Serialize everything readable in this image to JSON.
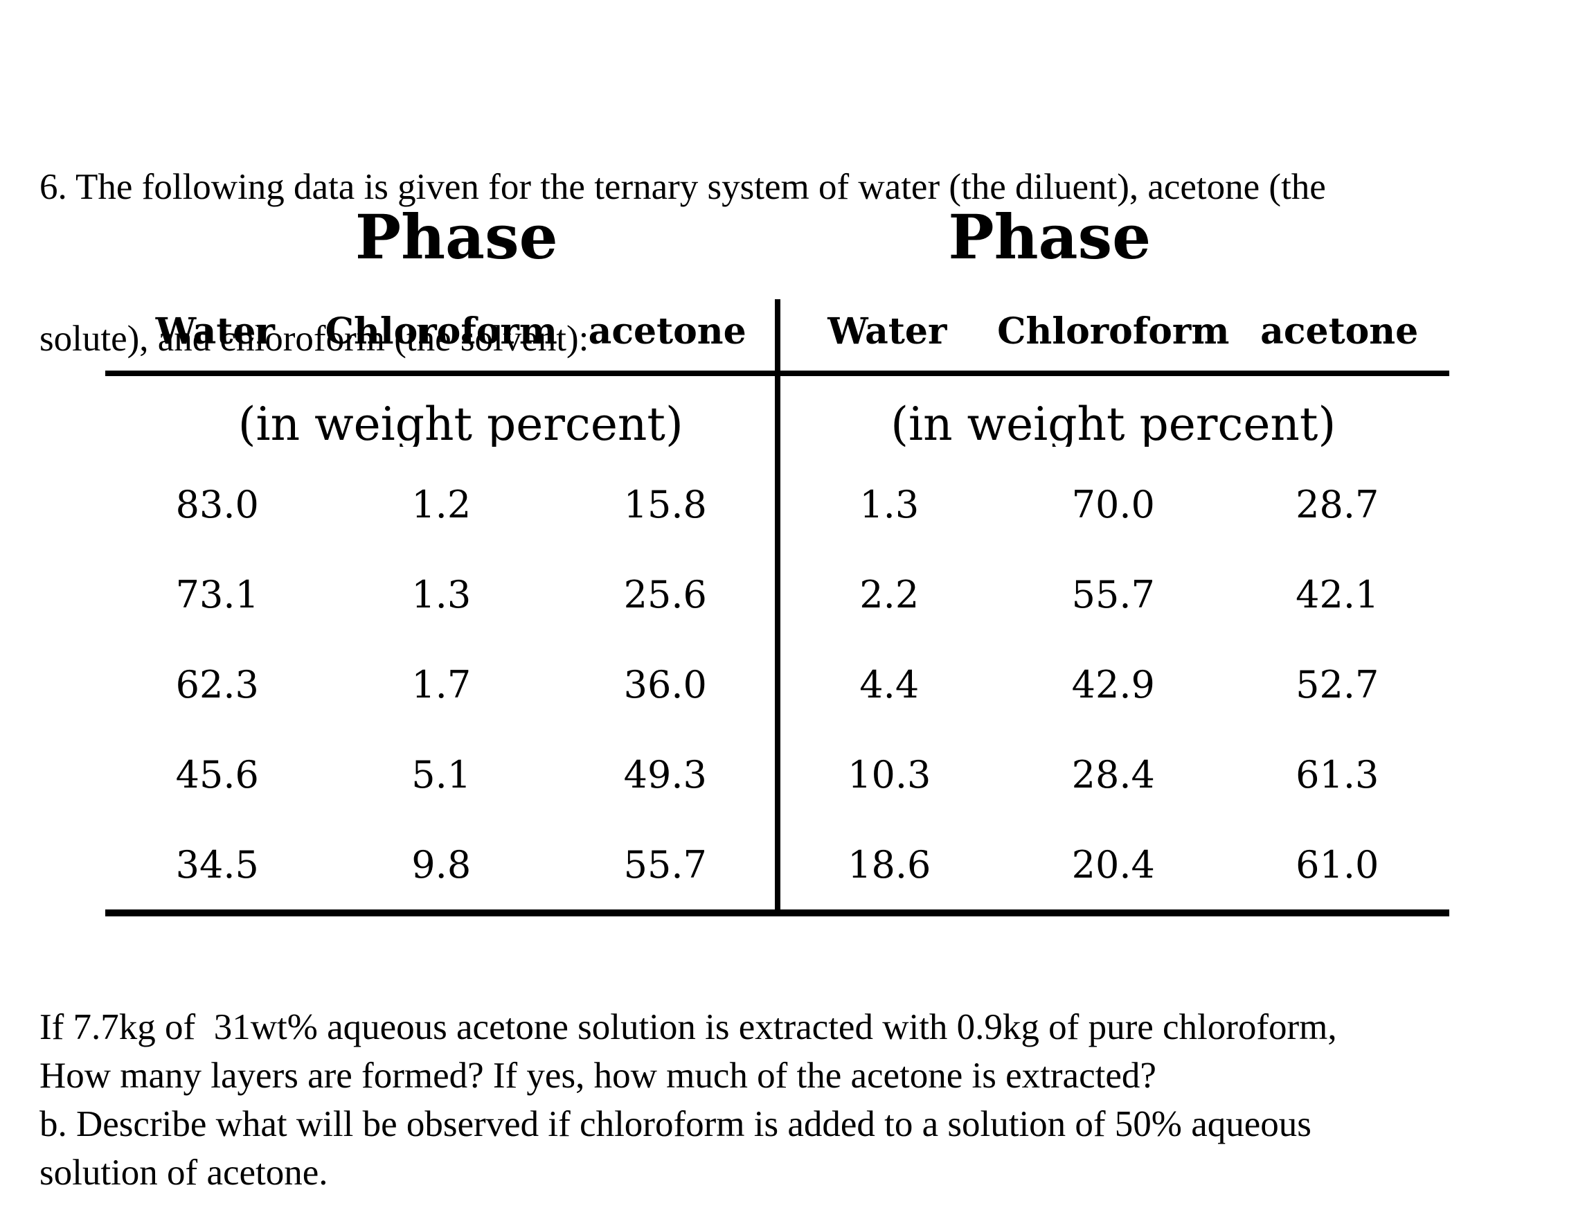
{
  "document": {
    "colors": {
      "background": "#ffffff",
      "text": "#000000",
      "rule": "#000000"
    },
    "intro": {
      "line1": "6. The following data is given for the ternary system of water (the diluent), acetone (the",
      "line2": "solute), and chloroform (the solvent):"
    },
    "table": {
      "left": {
        "title": "Phase",
        "columns": [
          "Water",
          "Chloroform",
          "acetone"
        ],
        "units_note": "(in weight percent)",
        "rows": [
          [
            "83.0",
            "1.2",
            "15.8"
          ],
          [
            "73.1",
            "1.3",
            "25.6"
          ],
          [
            "62.3",
            "1.7",
            "36.0"
          ],
          [
            "45.6",
            "5.1",
            "49.3"
          ],
          [
            "34.5",
            "9.8",
            "55.7"
          ]
        ]
      },
      "right": {
        "title": "Phase",
        "columns": [
          "Water",
          "Chloroform",
          "acetone"
        ],
        "units_note": "(in weight percent)",
        "rows": [
          [
            "1.3",
            "70.0",
            "28.7"
          ],
          [
            "2.2",
            "55.7",
            "42.1"
          ],
          [
            "4.4",
            "42.9",
            "52.7"
          ],
          [
            "10.3",
            "28.4",
            "61.3"
          ],
          [
            "18.6",
            "20.4",
            "61.0"
          ]
        ]
      }
    },
    "questions": {
      "line1": "If 7.7kg of  31wt% aqueous acetone solution is extracted with 0.9kg of pure chloroform,",
      "line2": "How many layers are formed? If yes, how much of the acetone is extracted?",
      "line3": "b. Describe what will be observed if chloroform is added to a solution of 50% aqueous",
      "line4": "solution of acetone."
    }
  }
}
